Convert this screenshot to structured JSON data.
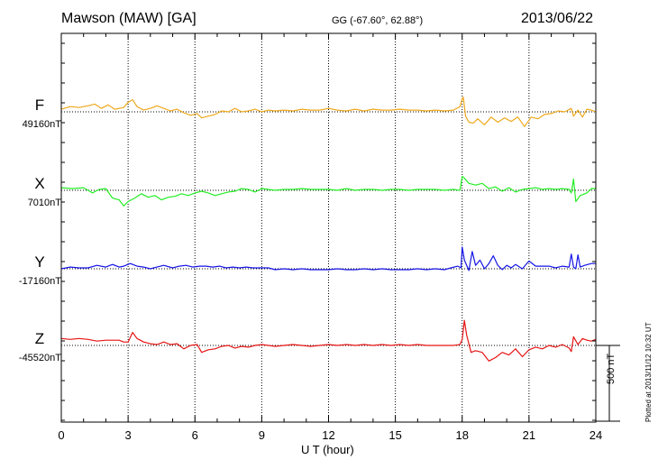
{
  "header": {
    "station": "Mawson (MAW)  [GA]",
    "coords": "GG (-67.60°,  62.88°)",
    "date": "2013/06/22"
  },
  "side": {
    "scale_label": "500 nT",
    "plotted": "Plotted at 2013/11/12 10:32 UT"
  },
  "chart_data": {
    "type": "line",
    "xlabel": "U T (hour)",
    "xlim": [
      0,
      24
    ],
    "xticks": [
      0,
      3,
      6,
      9,
      12,
      15,
      18,
      21,
      24
    ],
    "scale_bar_nT": 500,
    "series": [
      {
        "name": "F",
        "baseline_label": "49160nT",
        "color": "#f0a81c",
        "points": [
          [
            0,
            -30
          ],
          [
            0.4,
            -60
          ],
          [
            0.8,
            -50
          ],
          [
            1.2,
            -70
          ],
          [
            1.5,
            -90
          ],
          [
            1.8,
            -40
          ],
          [
            2.1,
            -80
          ],
          [
            2.4,
            -30
          ],
          [
            2.8,
            -50
          ],
          [
            3.0,
            -110
          ],
          [
            3.2,
            -140
          ],
          [
            3.4,
            -60
          ],
          [
            3.7,
            -20
          ],
          [
            4.0,
            -40
          ],
          [
            4.3,
            -70
          ],
          [
            4.6,
            -40
          ],
          [
            4.9,
            -10
          ],
          [
            5.2,
            -30
          ],
          [
            5.5,
            10
          ],
          [
            5.8,
            40
          ],
          [
            6.1,
            20
          ],
          [
            6.3,
            70
          ],
          [
            6.6,
            50
          ],
          [
            6.9,
            30
          ],
          [
            7.2,
            -10
          ],
          [
            7.5,
            0
          ],
          [
            7.8,
            -40
          ],
          [
            8.1,
            0
          ],
          [
            8.4,
            -10
          ],
          [
            8.7,
            -30
          ],
          [
            9.0,
            0
          ],
          [
            9.3,
            -20
          ],
          [
            9.6,
            -10
          ],
          [
            10.0,
            -20
          ],
          [
            10.4,
            -10
          ],
          [
            10.8,
            -30
          ],
          [
            11.2,
            -20
          ],
          [
            11.6,
            -20
          ],
          [
            12.0,
            -40
          ],
          [
            12.4,
            -20
          ],
          [
            12.8,
            -10
          ],
          [
            13.2,
            -30
          ],
          [
            13.6,
            -10
          ],
          [
            14.0,
            -30
          ],
          [
            14.4,
            -20
          ],
          [
            14.8,
            -20
          ],
          [
            15.2,
            -30
          ],
          [
            15.6,
            -20
          ],
          [
            16.0,
            -20
          ],
          [
            16.4,
            -10
          ],
          [
            16.8,
            -20
          ],
          [
            17.2,
            -10
          ],
          [
            17.6,
            -20
          ],
          [
            17.9,
            -60
          ],
          [
            18.0,
            -150
          ],
          [
            18.05,
            -170
          ],
          [
            18.15,
            50
          ],
          [
            18.3,
            120
          ],
          [
            18.5,
            130
          ],
          [
            18.7,
            80
          ],
          [
            19.0,
            150
          ],
          [
            19.3,
            60
          ],
          [
            19.6,
            120
          ],
          [
            19.9,
            70
          ],
          [
            20.2,
            110
          ],
          [
            20.5,
            60
          ],
          [
            20.8,
            170
          ],
          [
            21.1,
            60
          ],
          [
            21.4,
            80
          ],
          [
            21.7,
            30
          ],
          [
            22.0,
            20
          ],
          [
            22.3,
            -10
          ],
          [
            22.6,
            0
          ],
          [
            22.9,
            -40
          ],
          [
            23.0,
            50
          ],
          [
            23.2,
            -20
          ],
          [
            23.4,
            60
          ],
          [
            23.6,
            -30
          ],
          [
            23.8,
            -20
          ],
          [
            24,
            0
          ]
        ]
      },
      {
        "name": "X",
        "baseline_label": "7010nT",
        "color": "#22ee22",
        "points": [
          [
            0,
            -30
          ],
          [
            0.5,
            -20
          ],
          [
            1.0,
            -30
          ],
          [
            1.4,
            30
          ],
          [
            1.7,
            -10
          ],
          [
            2.0,
            -20
          ],
          [
            2.3,
            90
          ],
          [
            2.6,
            110
          ],
          [
            2.8,
            180
          ],
          [
            3.0,
            130
          ],
          [
            3.3,
            90
          ],
          [
            3.6,
            40
          ],
          [
            3.9,
            80
          ],
          [
            4.2,
            60
          ],
          [
            4.5,
            110
          ],
          [
            4.8,
            80
          ],
          [
            5.1,
            70
          ],
          [
            5.4,
            40
          ],
          [
            5.7,
            60
          ],
          [
            6.0,
            30
          ],
          [
            6.3,
            10
          ],
          [
            6.6,
            30
          ],
          [
            6.9,
            60
          ],
          [
            7.2,
            40
          ],
          [
            7.5,
            20
          ],
          [
            7.8,
            10
          ],
          [
            8.1,
            -20
          ],
          [
            8.4,
            -10
          ],
          [
            8.7,
            20
          ],
          [
            9.0,
            -20
          ],
          [
            9.3,
            -10
          ],
          [
            9.6,
            0
          ],
          [
            10.0,
            -10
          ],
          [
            10.4,
            -10
          ],
          [
            10.8,
            -20
          ],
          [
            11.2,
            -10
          ],
          [
            11.6,
            -10
          ],
          [
            12.0,
            -10
          ],
          [
            12.4,
            0
          ],
          [
            12.8,
            -20
          ],
          [
            13.2,
            0
          ],
          [
            13.6,
            -10
          ],
          [
            14.0,
            -10
          ],
          [
            14.4,
            0
          ],
          [
            14.8,
            -10
          ],
          [
            15.2,
            -10
          ],
          [
            15.6,
            0
          ],
          [
            16.0,
            -10
          ],
          [
            16.4,
            -10
          ],
          [
            16.8,
            -10
          ],
          [
            17.2,
            0
          ],
          [
            17.6,
            -10
          ],
          [
            17.9,
            0
          ],
          [
            18.0,
            -160
          ],
          [
            18.1,
            -140
          ],
          [
            18.3,
            -80
          ],
          [
            18.6,
            -60
          ],
          [
            18.9,
            -80
          ],
          [
            19.2,
            -20
          ],
          [
            19.5,
            -40
          ],
          [
            19.8,
            10
          ],
          [
            20.1,
            -30
          ],
          [
            20.4,
            20
          ],
          [
            20.7,
            -10
          ],
          [
            21.0,
            -20
          ],
          [
            21.3,
            -30
          ],
          [
            21.6,
            -10
          ],
          [
            21.9,
            -20
          ],
          [
            22.2,
            -10
          ],
          [
            22.5,
            -20
          ],
          [
            22.8,
            -10
          ],
          [
            22.9,
            30
          ],
          [
            23.0,
            -130
          ],
          [
            23.1,
            130
          ],
          [
            23.3,
            60
          ],
          [
            23.6,
            30
          ],
          [
            23.8,
            -20
          ],
          [
            24,
            -20
          ]
        ]
      },
      {
        "name": "Y",
        "baseline_label": "-17160nT",
        "color": "#1414e6",
        "points": [
          [
            0,
            0
          ],
          [
            0.4,
            -20
          ],
          [
            0.8,
            -10
          ],
          [
            1.2,
            -10
          ],
          [
            1.6,
            -40
          ],
          [
            2.0,
            -20
          ],
          [
            2.3,
            -50
          ],
          [
            2.6,
            -20
          ],
          [
            2.8,
            -30
          ],
          [
            3.1,
            -60
          ],
          [
            3.4,
            -30
          ],
          [
            3.7,
            -20
          ],
          [
            4.0,
            0
          ],
          [
            4.3,
            -20
          ],
          [
            4.6,
            -40
          ],
          [
            5.0,
            -10
          ],
          [
            5.3,
            -30
          ],
          [
            5.6,
            -40
          ],
          [
            5.9,
            -20
          ],
          [
            6.2,
            -30
          ],
          [
            6.5,
            -30
          ],
          [
            6.8,
            -20
          ],
          [
            7.1,
            -30
          ],
          [
            7.4,
            -10
          ],
          [
            7.7,
            -20
          ],
          [
            8.0,
            -10
          ],
          [
            8.3,
            -20
          ],
          [
            8.6,
            -10
          ],
          [
            9.0,
            -10
          ],
          [
            9.3,
            -10
          ],
          [
            9.6,
            10
          ],
          [
            10.0,
            0
          ],
          [
            10.4,
            10
          ],
          [
            10.8,
            0
          ],
          [
            11.2,
            10
          ],
          [
            11.6,
            10
          ],
          [
            12.0,
            10
          ],
          [
            12.4,
            0
          ],
          [
            12.8,
            10
          ],
          [
            13.2,
            10
          ],
          [
            13.6,
            0
          ],
          [
            14.0,
            10
          ],
          [
            14.4,
            0
          ],
          [
            14.8,
            10
          ],
          [
            15.2,
            10
          ],
          [
            15.6,
            10
          ],
          [
            16.0,
            0
          ],
          [
            16.4,
            10
          ],
          [
            16.8,
            0
          ],
          [
            17.2,
            10
          ],
          [
            17.5,
            -10
          ],
          [
            17.8,
            -30
          ],
          [
            17.95,
            -10
          ],
          [
            18.0,
            -250
          ],
          [
            18.1,
            -100
          ],
          [
            18.3,
            20
          ],
          [
            18.45,
            -200
          ],
          [
            18.6,
            -40
          ],
          [
            18.8,
            -100
          ],
          [
            19.0,
            0
          ],
          [
            19.2,
            -60
          ],
          [
            19.4,
            -150
          ],
          [
            19.6,
            -40
          ],
          [
            19.8,
            10
          ],
          [
            20.0,
            -40
          ],
          [
            20.2,
            -10
          ],
          [
            20.4,
            -50
          ],
          [
            20.7,
            0
          ],
          [
            21.0,
            -90
          ],
          [
            21.3,
            -30
          ],
          [
            21.6,
            -30
          ],
          [
            21.9,
            -30
          ],
          [
            22.2,
            -10
          ],
          [
            22.5,
            -30
          ],
          [
            22.8,
            -20
          ],
          [
            22.9,
            -170
          ],
          [
            23.0,
            -20
          ],
          [
            23.1,
            0
          ],
          [
            23.2,
            -160
          ],
          [
            23.3,
            -20
          ],
          [
            23.5,
            -40
          ],
          [
            23.8,
            -60
          ],
          [
            24,
            -60
          ]
        ]
      },
      {
        "name": "Z",
        "baseline_label": "-45520nT",
        "color": "#e61414",
        "points": [
          [
            0,
            -80
          ],
          [
            0.4,
            -70
          ],
          [
            0.8,
            -80
          ],
          [
            1.2,
            -70
          ],
          [
            1.6,
            -50
          ],
          [
            2.0,
            -60
          ],
          [
            2.3,
            -60
          ],
          [
            2.6,
            -60
          ],
          [
            2.8,
            -40
          ],
          [
            3.0,
            -40
          ],
          [
            3.2,
            -150
          ],
          [
            3.4,
            -80
          ],
          [
            3.7,
            -40
          ],
          [
            4.0,
            -20
          ],
          [
            4.3,
            -10
          ],
          [
            4.6,
            -40
          ],
          [
            4.9,
            -10
          ],
          [
            5.2,
            -20
          ],
          [
            5.5,
            40
          ],
          [
            5.8,
            0
          ],
          [
            6.1,
            -10
          ],
          [
            6.3,
            80
          ],
          [
            6.6,
            50
          ],
          [
            6.9,
            40
          ],
          [
            7.2,
            10
          ],
          [
            7.5,
            0
          ],
          [
            7.8,
            30
          ],
          [
            8.1,
            10
          ],
          [
            8.4,
            20
          ],
          [
            8.7,
            0
          ],
          [
            9.0,
            -10
          ],
          [
            9.3,
            0
          ],
          [
            9.6,
            10
          ],
          [
            10.0,
            0
          ],
          [
            10.4,
            -10
          ],
          [
            10.8,
            0
          ],
          [
            11.2,
            10
          ],
          [
            11.6,
            0
          ],
          [
            12.0,
            -10
          ],
          [
            12.4,
            0
          ],
          [
            12.8,
            -10
          ],
          [
            13.2,
            0
          ],
          [
            13.6,
            -10
          ],
          [
            14.0,
            0
          ],
          [
            14.4,
            -10
          ],
          [
            14.8,
            0
          ],
          [
            15.2,
            -10
          ],
          [
            15.6,
            0
          ],
          [
            16.0,
            -10
          ],
          [
            16.4,
            0
          ],
          [
            16.8,
            0
          ],
          [
            17.2,
            0
          ],
          [
            17.6,
            0
          ],
          [
            17.9,
            -10
          ],
          [
            18.0,
            -70
          ],
          [
            18.1,
            -290
          ],
          [
            18.2,
            -120
          ],
          [
            18.4,
            80
          ],
          [
            18.6,
            60
          ],
          [
            18.9,
            80
          ],
          [
            19.2,
            180
          ],
          [
            19.5,
            140
          ],
          [
            19.8,
            80
          ],
          [
            20.1,
            110
          ],
          [
            20.4,
            40
          ],
          [
            20.7,
            130
          ],
          [
            21.0,
            50
          ],
          [
            21.3,
            20
          ],
          [
            21.6,
            40
          ],
          [
            21.9,
            0
          ],
          [
            22.2,
            20
          ],
          [
            22.5,
            -10
          ],
          [
            22.8,
            30
          ],
          [
            22.9,
            70
          ],
          [
            23.0,
            -100
          ],
          [
            23.2,
            -10
          ],
          [
            23.4,
            -80
          ],
          [
            23.6,
            -60
          ],
          [
            23.8,
            -50
          ],
          [
            24,
            -70
          ]
        ]
      }
    ]
  }
}
